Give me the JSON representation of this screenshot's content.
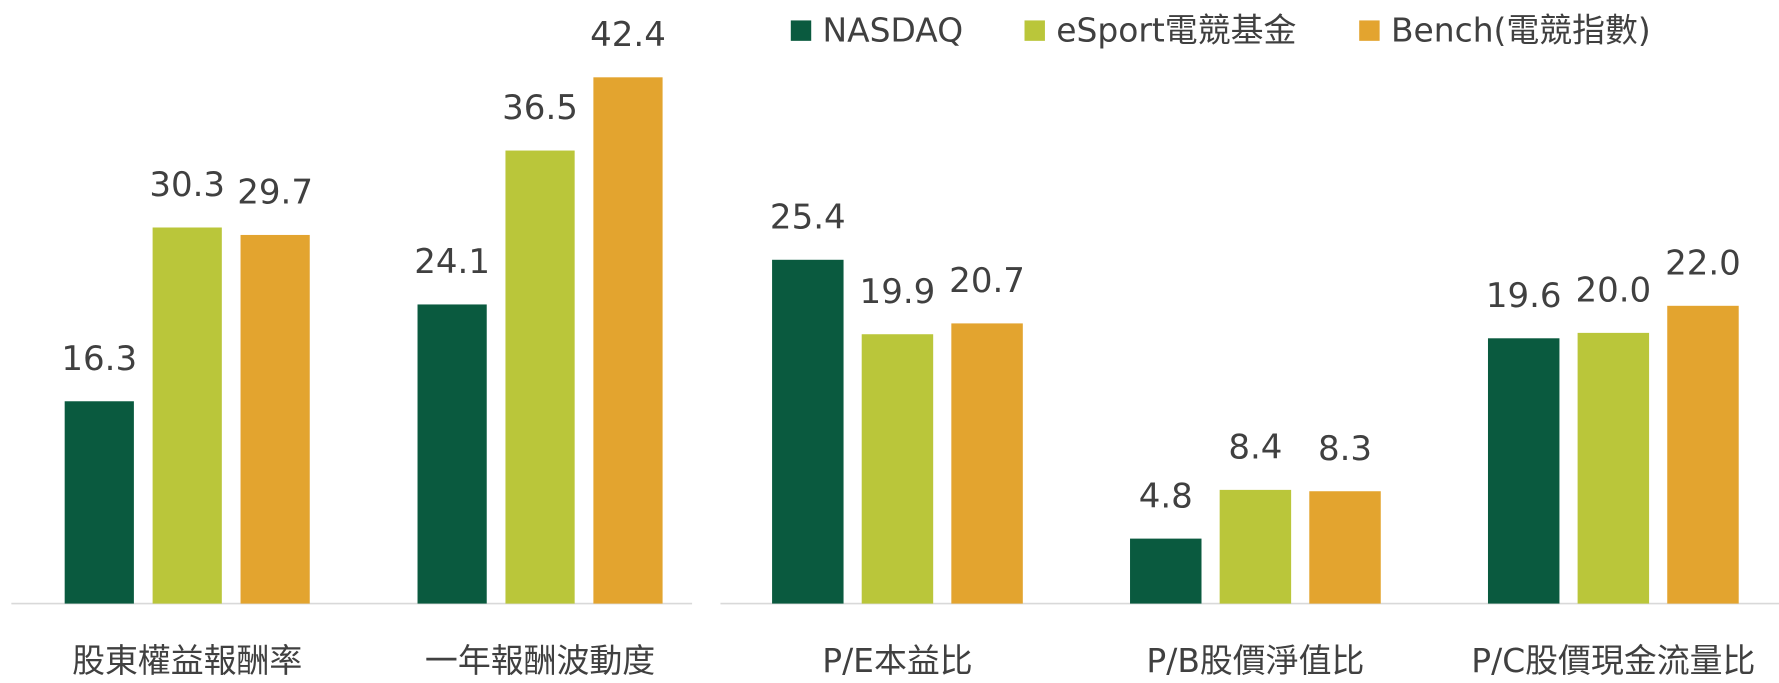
{
  "chart_data": [
    {
      "type": "bar",
      "categories": [
        "股東權益報酬率",
        "一年報酬波動度"
      ],
      "series": [
        {
          "name": "NASDAQ",
          "color": "#0a5a3f",
          "values": [
            16.3,
            24.1
          ]
        },
        {
          "name": "eSport電競基金",
          "color": "#bac63a",
          "values": [
            30.3,
            36.5
          ]
        },
        {
          "name": "Bench(電競指數)",
          "color": "#e3a42f",
          "values": [
            29.7,
            42.4
          ]
        }
      ],
      "ylim": [
        0,
        45
      ]
    },
    {
      "type": "bar",
      "categories": [
        "P/E本益比",
        "P/B股價淨值比",
        "P/C股價現金流量比"
      ],
      "series": [
        {
          "color": "#0a5a3f",
          "values": [
            25.4,
            4.8,
            19.6
          ],
          "value_labels": [
            "25.4",
            "4.8",
            "19.6"
          ]
        },
        {
          "color": "#bac63a",
          "values": [
            19.9,
            8.4,
            20.0
          ],
          "value_labels": [
            "19.9",
            "8.4",
            "20.0"
          ]
        },
        {
          "color": "#e3a42f",
          "values": [
            20.7,
            8.3,
            22.0
          ],
          "value_labels": [
            "20.7",
            "8.3",
            "22.0"
          ]
        }
      ],
      "ylim": [
        0,
        30
      ]
    }
  ]
}
